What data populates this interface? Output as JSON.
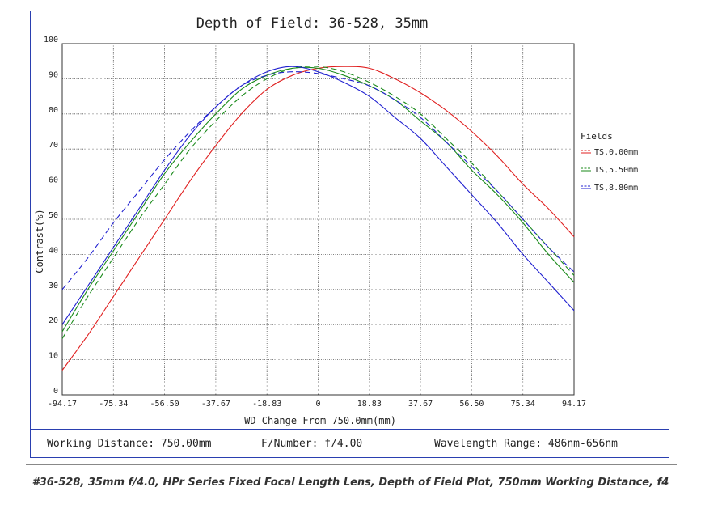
{
  "chart_data": {
    "type": "line",
    "title": "Depth of Field: 36-528, 35mm",
    "xlabel": "WD Change From 750.0mm(mm)",
    "ylabel": "Contrast(%)",
    "xlim": [
      -94.17,
      94.17
    ],
    "ylim": [
      0,
      100
    ],
    "xticks": [
      "-94.17",
      "-75.34",
      "-56.50",
      "-37.67",
      "-18.83",
      "0",
      "18.83",
      "37.67",
      "56.50",
      "75.34",
      "94.17"
    ],
    "yticks": [
      "0",
      "10",
      "20",
      "30",
      "40",
      "50",
      "60",
      "70",
      "80",
      "90",
      "100"
    ],
    "grid": true,
    "legend_title": "Fields",
    "legend_position": "right",
    "x": [
      -94.17,
      -84.75,
      -75.34,
      -65.92,
      -56.5,
      -47.09,
      -37.67,
      -28.25,
      -18.83,
      -9.42,
      0,
      9.42,
      18.83,
      28.25,
      37.67,
      47.09,
      56.5,
      65.92,
      75.34,
      84.75,
      94.17
    ],
    "series": [
      {
        "name": "TS,0.00mm",
        "color": "#e02020",
        "dash": "solid",
        "values": [
          7,
          17,
          28,
          39,
          50,
          61,
          71,
          80,
          87,
          91,
          93,
          93.5,
          93,
          90,
          86,
          81,
          75,
          68,
          60,
          53,
          45
        ]
      },
      {
        "name": "TS,5.50mm",
        "color": "#1a8a1a",
        "dash": "solid",
        "values": [
          18,
          30,
          41,
          52,
          63,
          72,
          80,
          87,
          91,
          93,
          93,
          91,
          88,
          84,
          78,
          72,
          64,
          57,
          49,
          40,
          32
        ]
      },
      {
        "name": "TS,5.50mm",
        "color": "#1a8a1a",
        "dash": "dashed",
        "values": [
          16,
          28,
          39,
          50,
          60,
          70,
          78,
          85,
          90,
          93,
          93.5,
          92,
          89,
          85,
          80,
          73,
          66,
          58,
          50,
          42,
          34
        ]
      },
      {
        "name": "TS,8.80mm",
        "color": "#2020d0",
        "dash": "solid",
        "values": [
          20,
          31,
          42,
          53,
          64,
          74,
          82,
          88,
          92,
          93.5,
          92,
          89,
          85,
          79,
          73,
          65,
          57,
          49,
          40,
          32,
          24
        ]
      },
      {
        "name": "TS,8.80mm",
        "color": "#2020d0",
        "dash": "dashed",
        "values": [
          30,
          39,
          49,
          58,
          67,
          75,
          82,
          88,
          91,
          92,
          91.5,
          90,
          88,
          84,
          79,
          72,
          65,
          58,
          50,
          42,
          35
        ]
      }
    ]
  },
  "footer": {
    "working_distance": "Working Distance: 750.00mm",
    "f_number": "F/Number: f/4.00",
    "wavelength": "Wavelength Range: 486nm-656nm"
  },
  "caption": "#36-528, 35mm f/4.0, HPr Series Fixed Focal Length Lens, Depth of Field Plot, 750mm Working Distance, f4"
}
